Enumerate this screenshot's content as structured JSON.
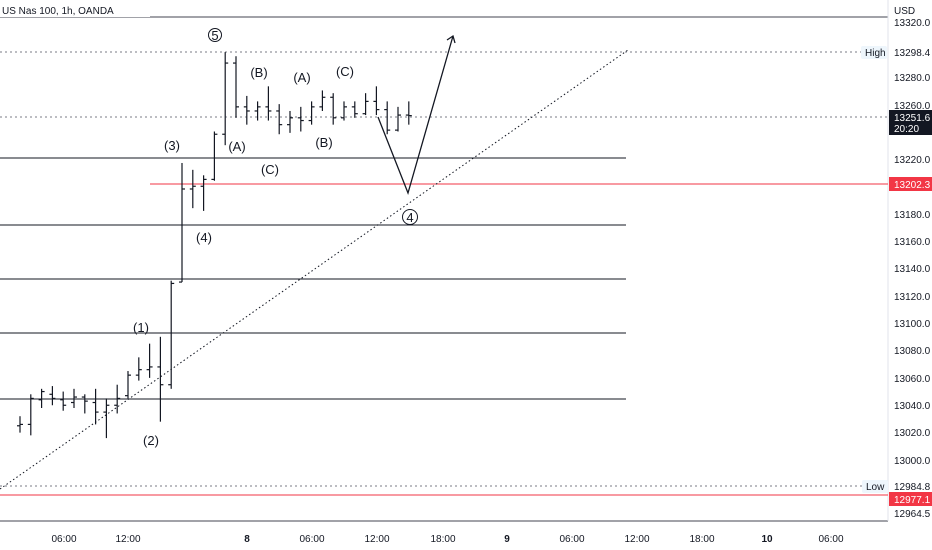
{
  "header": {
    "symbol": "US Nas 100, 1h, OANDA"
  },
  "price_axis": {
    "currency": "USD",
    "ticks": [
      "13320.0",
      "13280.0",
      "13260.0",
      "13220.0",
      "13180.0",
      "13160.0",
      "13140.0",
      "13120.0",
      "13100.0",
      "13080.0",
      "13060.0",
      "13040.0",
      "13020.0",
      "13000.0",
      "12964.5"
    ]
  },
  "time_axis": {
    "ticks": [
      "06:00",
      "12:00",
      "8",
      "06:00",
      "12:00",
      "18:00",
      "9",
      "06:00",
      "12:00",
      "18:00",
      "10",
      "06:00"
    ]
  },
  "tags": {
    "high_label": "High",
    "high_value": "13298.4",
    "last_value": "13251.6",
    "last_time": "20:20",
    "support_value": "13202.3",
    "low_label": "Low",
    "low_value": "12984.8",
    "bottom_value": "12977.1"
  },
  "wave_labels": {
    "w1": "(1)",
    "w2": "(2)",
    "w3": "(3)",
    "w4": "(4)",
    "w5": "5",
    "a1": "(A)",
    "b1": "(B)",
    "c1": "(C)",
    "a2": "(A)",
    "b2": "(B)",
    "c2": "(C)",
    "target4": "4"
  },
  "colors": {
    "support": "#f23645",
    "tag_bg": "#131722",
    "axis_text": "#131722"
  },
  "chart_data": {
    "type": "ohlc",
    "title": "US Nas 100, 1h, OANDA",
    "ylabel": "USD",
    "ylim": [
      12964.5,
      13331.5
    ],
    "horizontal_levels": [
      13220,
      13173,
      13131,
      13095,
      13047
    ],
    "support_level": 13202.3,
    "high_level": 13298.4,
    "low_level": 12984.8,
    "bottom_level": 12977.1,
    "last_price": 13251.6,
    "x_ticks": [
      "06:00",
      "12:00",
      "8",
      "06:00",
      "12:00",
      "18:00",
      "9",
      "06:00",
      "12:00",
      "18:00",
      "10",
      "06:00"
    ],
    "candles": [
      {
        "t": "03:00",
        "o": 13025,
        "h": 13032,
        "l": 13020,
        "c": 13026
      },
      {
        "t": "04:00",
        "o": 13026,
        "h": 13048,
        "l": 13018,
        "c": 13045
      },
      {
        "t": "05:00",
        "o": 13044,
        "h": 13052,
        "l": 13038,
        "c": 13050
      },
      {
        "t": "06:00",
        "o": 13048,
        "h": 13054,
        "l": 13040,
        "c": 13045
      },
      {
        "t": "07:00",
        "o": 13044,
        "h": 13050,
        "l": 13036,
        "c": 13040
      },
      {
        "t": "08:00",
        "o": 13042,
        "h": 13052,
        "l": 13038,
        "c": 13046
      },
      {
        "t": "09:00",
        "o": 13046,
        "h": 13048,
        "l": 13034,
        "c": 13043
      },
      {
        "t": "10:00",
        "o": 13042,
        "h": 13052,
        "l": 13026,
        "c": 13035
      },
      {
        "t": "11:00",
        "o": 13035,
        "h": 13045,
        "l": 13016,
        "c": 13040
      },
      {
        "t": "12:00",
        "o": 13040,
        "h": 13055,
        "l": 13034,
        "c": 13045
      },
      {
        "t": "13:00",
        "o": 13047,
        "h": 13065,
        "l": 13045,
        "c": 13062
      },
      {
        "t": "14:00",
        "o": 13062,
        "h": 13075,
        "l": 13058,
        "c": 13066
      },
      {
        "t": "15:00",
        "o": 13066,
        "h": 13085,
        "l": 13060,
        "c": 13068
      },
      {
        "t": "16:00",
        "o": 13068,
        "h": 13090,
        "l": 13028,
        "c": 13055
      },
      {
        "t": "17:00",
        "o": 13055,
        "h": 13131,
        "l": 13052,
        "c": 13129
      },
      {
        "t": "18:00",
        "o": 13130,
        "h": 13217,
        "l": 13130,
        "c": 13198
      },
      {
        "t": "19:00",
        "o": 13198,
        "h": 13212,
        "l": 13184,
        "c": 13200
      },
      {
        "t": "20:00",
        "o": 13200,
        "h": 13208,
        "l": 13182,
        "c": 13205
      },
      {
        "t": "21:00",
        "o": 13205,
        "h": 13240,
        "l": 13204,
        "c": 13238
      },
      {
        "t": "22:00",
        "o": 13238,
        "h": 13298,
        "l": 13230,
        "c": 13290
      },
      {
        "t": "23:00",
        "o": 13290,
        "h": 13295,
        "l": 13250,
        "c": 13258
      },
      {
        "t": "00:00",
        "o": 13258,
        "h": 13266,
        "l": 13245,
        "c": 13255
      },
      {
        "t": "01:00",
        "o": 13255,
        "h": 13262,
        "l": 13248,
        "c": 13258
      },
      {
        "t": "02:00",
        "o": 13258,
        "h": 13273,
        "l": 13248,
        "c": 13255
      },
      {
        "t": "03:00",
        "o": 13255,
        "h": 13260,
        "l": 13238,
        "c": 13245
      },
      {
        "t": "04:00",
        "o": 13245,
        "h": 13255,
        "l": 13239,
        "c": 13250
      },
      {
        "t": "05:00",
        "o": 13250,
        "h": 13258,
        "l": 13240,
        "c": 13248
      },
      {
        "t": "06:00",
        "o": 13248,
        "h": 13262,
        "l": 13245,
        "c": 13258
      },
      {
        "t": "07:00",
        "o": 13258,
        "h": 13270,
        "l": 13255,
        "c": 13265
      },
      {
        "t": "08:00",
        "o": 13265,
        "h": 13268,
        "l": 13245,
        "c": 13250
      },
      {
        "t": "09:00",
        "o": 13250,
        "h": 13262,
        "l": 13248,
        "c": 13258
      },
      {
        "t": "10:00",
        "o": 13258,
        "h": 13262,
        "l": 13250,
        "c": 13253
      },
      {
        "t": "11:00",
        "o": 13253,
        "h": 13268,
        "l": 13252,
        "c": 13262
      },
      {
        "t": "12:00",
        "o": 13262,
        "h": 13273,
        "l": 13252,
        "c": 13256
      },
      {
        "t": "13:00",
        "o": 13256,
        "h": 13262,
        "l": 13238,
        "c": 13241
      },
      {
        "t": "14:00",
        "o": 13241,
        "h": 13258,
        "l": 13240,
        "c": 13252
      },
      {
        "t": "15:00",
        "o": 13252,
        "h": 13262,
        "l": 13245,
        "c": 13251.6
      }
    ]
  }
}
